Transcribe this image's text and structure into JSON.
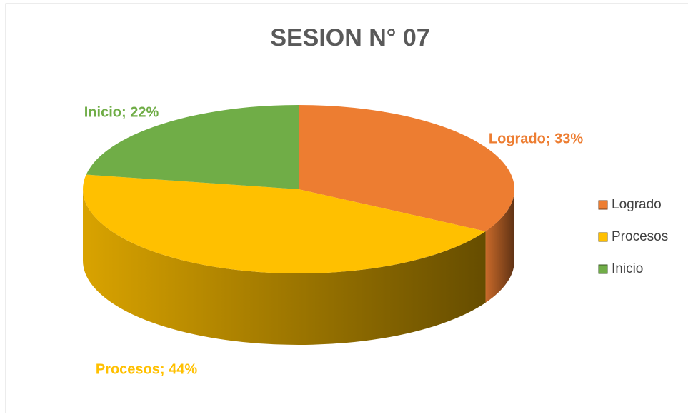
{
  "chart_data": {
    "type": "pie",
    "title": "SESION N° 07",
    "categories": [
      "Logrado",
      "Procesos",
      "Inicio"
    ],
    "values": [
      33,
      44,
      22
    ],
    "value_labels": [
      "Logrado; 33%",
      "Procesos; 44%",
      "Inicio; 22%"
    ],
    "colors": [
      "#ed7d31",
      "#ffc000",
      "#70ad47"
    ],
    "legend": "right",
    "three_d": true
  }
}
